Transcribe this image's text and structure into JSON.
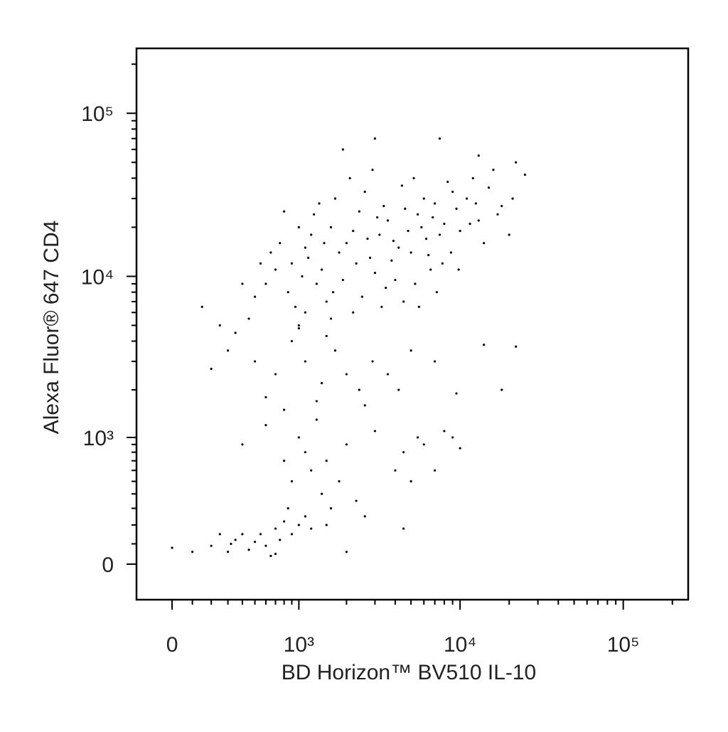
{
  "chart_data": {
    "type": "scatter",
    "xlabel": "BD Horizon™ BV510 IL-10",
    "ylabel": "Alexa Fluor® 647 CD4",
    "scale": "biexponential",
    "color": "#000000",
    "xlim": [
      -180,
      250000
    ],
    "ylim": [
      -180,
      250000
    ],
    "xticks": [
      0,
      {
        "value": 1000,
        "label": "10³"
      },
      {
        "value": 10000,
        "label": "10⁴"
      },
      {
        "value": 100000,
        "label": "10⁵"
      }
    ],
    "yticks": [
      0,
      {
        "value": 1000,
        "label": "10³"
      },
      {
        "value": 10000,
        "label": "10⁴"
      },
      {
        "value": 100000,
        "label": "10⁵"
      }
    ],
    "xminorticks": [
      100,
      200,
      300,
      400,
      500,
      600,
      700,
      800,
      900,
      2000,
      3000,
      4000,
      5000,
      6000,
      7000,
      8000,
      9000,
      20000,
      30000,
      40000,
      50000,
      60000,
      70000,
      80000,
      90000,
      200000
    ],
    "yminorticks": [
      100,
      200,
      300,
      400,
      500,
      600,
      700,
      800,
      900,
      2000,
      3000,
      4000,
      5000,
      6000,
      7000,
      8000,
      9000,
      20000,
      30000,
      40000,
      50000,
      60000,
      70000,
      80000,
      90000,
      200000
    ],
    "x": [
      900,
      1100,
      1300,
      1600,
      2000,
      2400,
      2800,
      3200,
      3600,
      4200,
      4800,
      5500,
      6200,
      7000,
      8000,
      9500,
      11000,
      13000,
      15000,
      18000,
      700,
      750,
      850,
      1000,
      1150,
      1250,
      1400,
      1700,
      1900,
      2200,
      2600,
      3000,
      3400,
      3800,
      4400,
      5000,
      5800,
      6600,
      7500,
      8800,
      10000,
      12000,
      14000,
      17000,
      21000,
      25000,
      600,
      650,
      950,
      1050,
      1200,
      1350,
      1500,
      1800,
      2100,
      2300,
      2700,
      3100,
      3500,
      3900,
      4600,
      5300,
      6000,
      6800,
      7800,
      9000,
      11500,
      16000,
      20000,
      500,
      550,
      800,
      1000,
      1450,
      1650,
      2500,
      2900,
      4000,
      5200,
      6400,
      7200,
      8400,
      9800,
      12500,
      1100,
      1600,
      2200,
      3300,
      4500,
      5600,
      450,
      400,
      350,
      1900,
      3000,
      7500,
      13000,
      22000,
      250,
      150,
      300,
      500,
      700,
      900,
      1100,
      1400,
      1700,
      2000,
      2400,
      2900,
      3600,
      5000,
      7000,
      9500,
      18000,
      22000,
      600,
      800,
      1300,
      2600,
      4200,
      200,
      14000,
      1000,
      1500,
      400,
      600,
      800,
      900,
      1000,
      1100,
      1200,
      1300,
      1400,
      1500,
      1600,
      1800,
      2000,
      2300,
      2600,
      3000,
      4000,
      4500,
      5000,
      6000,
      7000,
      9000,
      10000,
      5500,
      8000,
      0,
      100,
      200,
      300,
      350,
      400,
      450,
      500,
      550,
      600,
      650,
      700,
      750,
      800,
      900,
      1000,
      1100,
      1200,
      250,
      320,
      2000,
      1500,
      4500,
      700,
      850
    ],
    "values": [
      12000,
      15000,
      9000,
      20000,
      16000,
      25000,
      13000,
      18000,
      22000,
      15000,
      19000,
      24000,
      17000,
      28000,
      21000,
      26000,
      30000,
      22000,
      35000,
      27000,
      11000,
      16000,
      8000,
      20000,
      13000,
      24000,
      11000,
      30000,
      9500,
      19000,
      33000,
      10500,
      27000,
      12500,
      36000,
      14000,
      20000,
      11000,
      18000,
      14000,
      19000,
      40000,
      16000,
      24000,
      30000,
      42000,
      9000,
      14000,
      6500,
      10000,
      18000,
      28000,
      7000,
      14000,
      40000,
      12000,
      17000,
      23000,
      8500,
      16500,
      26000,
      9000,
      30000,
      23000,
      12000,
      33000,
      21000,
      45000,
      18000,
      7500,
      12000,
      25000,
      5000,
      16000,
      8000,
      7500,
      45000,
      9500,
      40000,
      13500,
      8000,
      38000,
      11000,
      28000,
      6000,
      5500,
      6000,
      6500,
      7000,
      6500,
      5500,
      9000,
      4500,
      60000,
      70000,
      70000,
      55000,
      50000,
      5000,
      6500,
      3500,
      3000,
      2500,
      4000,
      3000,
      2200,
      3500,
      2500,
      2000,
      3000,
      2500,
      3500,
      3000,
      1900,
      2000,
      3700,
      1800,
      1500,
      1700,
      1600,
      2000,
      2700,
      3800,
      4800,
      4300,
      900,
      1200,
      700,
      500,
      1000,
      800,
      600,
      1300,
      400,
      700,
      300,
      500,
      900,
      350,
      250,
      1100,
      600,
      800,
      500,
      900,
      600,
      1000,
      850,
      1000,
      1100,
      80,
      60,
      90,
      60,
      120,
      150,
      70,
      110,
      150,
      90,
      40,
      180,
      120,
      220,
      150,
      200,
      250,
      180,
      150,
      100,
      60,
      200,
      180,
      50,
      300
    ]
  }
}
